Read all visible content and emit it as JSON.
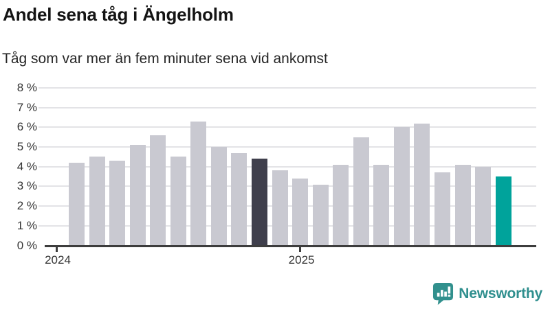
{
  "header": {
    "title": "Andel sena tåg i Ängelholm",
    "subtitle": "Tåg som var mer än fem minuter sena vid ankomst"
  },
  "chart_data": {
    "type": "bar",
    "title": "Andel sena tåg i Ängelholm",
    "subtitle": "Tåg som var mer än fem minuter sena vid ankomst",
    "unit": "%",
    "x": [
      "2024-02",
      "2024-03",
      "2024-04",
      "2024-05",
      "2024-06",
      "2024-07",
      "2024-08",
      "2024-09",
      "2024-10",
      "2024-11",
      "2024-12",
      "2025-01",
      "2025-02",
      "2025-03",
      "2025-04",
      "2025-05",
      "2025-06",
      "2025-07",
      "2025-08",
      "2025-09",
      "2025-10",
      "2025-11"
    ],
    "values": [
      4.2,
      4.5,
      4.3,
      5.1,
      5.6,
      4.5,
      6.3,
      5.0,
      4.7,
      4.4,
      3.8,
      3.4,
      3.1,
      4.1,
      5.5,
      4.1,
      6.0,
      6.2,
      3.7,
      4.1,
      4.0,
      3.5
    ],
    "ylim": [
      0,
      8
    ],
    "y_tick_labels": [
      "0 %",
      "1 %",
      "2 %",
      "3 %",
      "4 %",
      "5 %",
      "6 %",
      "7 %",
      "8 %"
    ],
    "x_ticks": [
      {
        "label": "2024",
        "month_index": 0
      },
      {
        "label": "2025",
        "month_index": 12
      }
    ],
    "grid": true,
    "legend": false,
    "highlights": {
      "dark_index": 9,
      "teal_index": 21
    },
    "colors": {
      "bar_default": "#c9c9d1",
      "bar_dark": "#3f3f4c",
      "bar_teal": "#00a39b",
      "gridline": "#e3e3e6",
      "axis": "#3d3d3d",
      "tick_text": "#333333"
    }
  },
  "footer": {
    "brand": "Newsworthy",
    "logo_icon": "newsworthy-bubble-barchart-icon",
    "brand_color": "#2f8f8e"
  }
}
